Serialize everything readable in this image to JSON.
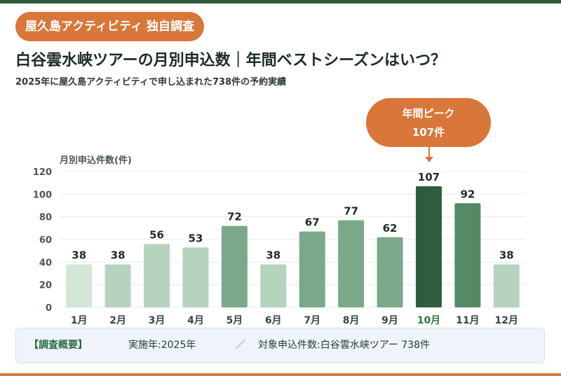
{
  "header": {
    "badge": "屋久島アクティビティ 独自調査",
    "title": "白谷雲水峡ツアーの月別申込数｜年間ベストシーズンはいつ？",
    "subtitle": "2025年に屋久島アクティビティで申し込まれた738件の予約実績"
  },
  "callout": {
    "line1": "年間ピーク",
    "line2": "107件"
  },
  "summary": {
    "label": "【調査概要】",
    "item1": "実施年:2025年",
    "separator": "／",
    "item2": "対象申込件数:白谷雲水峡ツアー 738件"
  },
  "colors": {
    "top_bar": "#2e5d3e",
    "accent_orange": "#d9773a",
    "bar_peak": "#2e5d3e",
    "label_peak": "#2e7a3e"
  },
  "chart_data": {
    "type": "bar",
    "ylabel": "月別申込件数(件)",
    "xlabel": "",
    "categories": [
      "1月",
      "2月",
      "3月",
      "4月",
      "5月",
      "6月",
      "7月",
      "8月",
      "9月",
      "10月",
      "11月",
      "12月"
    ],
    "values": [
      38,
      38,
      56,
      53,
      72,
      38,
      67,
      77,
      62,
      107,
      92,
      38
    ],
    "bar_colors": [
      "#d3e6d7",
      "#b6d3bf",
      "#b6d3bf",
      "#b6d3bf",
      "#7aa989",
      "#b6d3bf",
      "#7aa989",
      "#7aa989",
      "#7aa989",
      "#2e5d3e",
      "#548a66",
      "#b6d3bf"
    ],
    "ylim": [
      0,
      120
    ],
    "yticks": [
      0,
      20,
      40,
      60,
      80,
      100,
      120
    ],
    "grid": true,
    "data_labels": true,
    "highlight": "10月"
  }
}
